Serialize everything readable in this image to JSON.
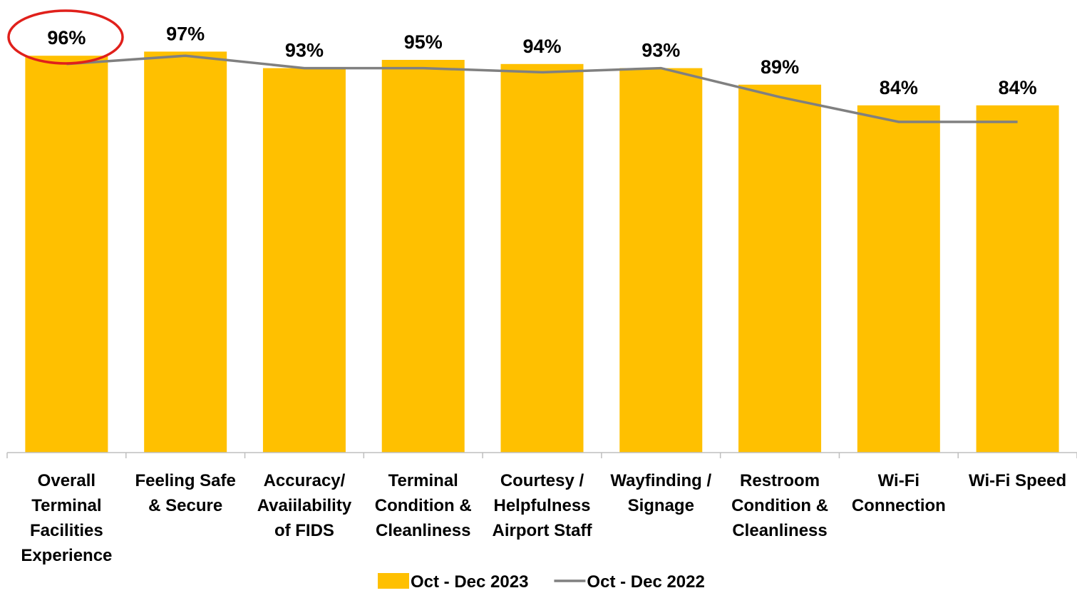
{
  "chart_data": {
    "type": "bar",
    "categories": [
      "Overall Terminal Facilities Experience",
      "Feeling Safe & Secure",
      "Accuracy/ Avaiilability of FIDS",
      "Terminal Condition & Cleanliness",
      "Courtesy / Helpfulness Airport Staff",
      "Wayfinding / Signage",
      "Restroom Condition & Cleanliness",
      "Wi-Fi Connection",
      "Wi-Fi Speed"
    ],
    "series": [
      {
        "name": "Oct - Dec 2023",
        "type": "bar",
        "color": "#ffc000",
        "values": [
          96,
          97,
          93,
          95,
          94,
          93,
          89,
          84,
          84
        ],
        "value_labels": [
          "96%",
          "97%",
          "93%",
          "95%",
          "94%",
          "93%",
          "89%",
          "84%",
          "84%"
        ]
      },
      {
        "name": "Oct - Dec 2022",
        "type": "line",
        "color": "#808080",
        "values": [
          94,
          96,
          93,
          93,
          92,
          93,
          86,
          80,
          80
        ]
      }
    ],
    "ylim": [
      0,
      100
    ],
    "legend": "bottom"
  }
}
